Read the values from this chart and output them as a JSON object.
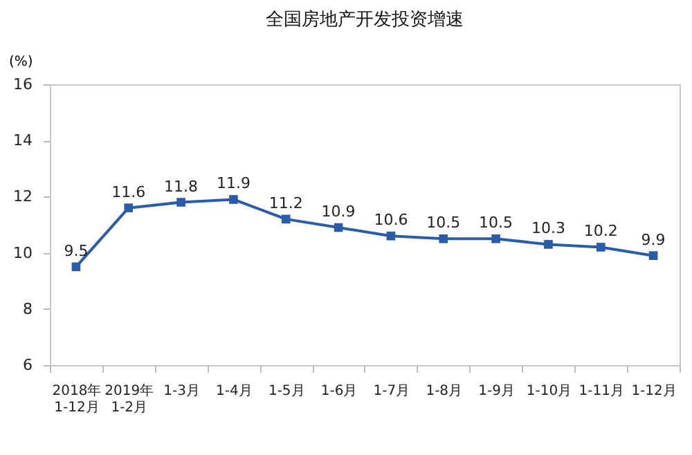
{
  "chart_data": {
    "type": "line",
    "title": "全国房地产开发投资增速",
    "ylabel": "(%)",
    "categories": [
      "2018年\n1-12月",
      "2019年\n1-2月",
      "1-3月",
      "1-4月",
      "1-5月",
      "1-6月",
      "1-7月",
      "1-8月",
      "1-9月",
      "1-10月",
      "1-11月",
      "1-12月"
    ],
    "series": [
      {
        "color": "#2a5caa",
        "values": [
          9.5,
          11.6,
          11.8,
          11.9,
          11.2,
          10.9,
          10.6,
          10.5,
          10.5,
          10.3,
          10.2,
          9.9
        ]
      }
    ],
    "ylim": [
      6,
      16
    ],
    "yticks": [
      6,
      8,
      10,
      12,
      14,
      16
    ],
    "grid": false,
    "legend": false,
    "marker": "square",
    "line_style": "solid",
    "data_labels": true
  }
}
